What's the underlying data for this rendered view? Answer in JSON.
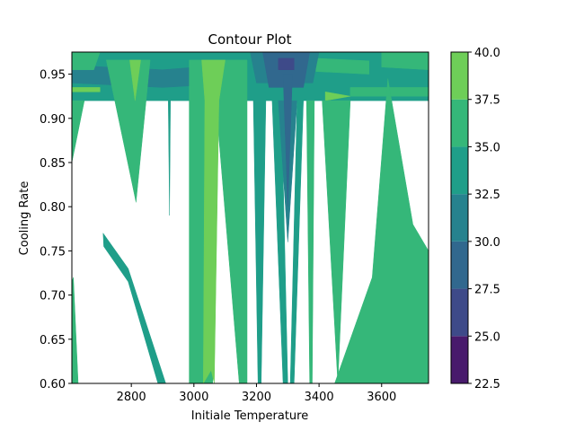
{
  "chart_data": {
    "type": "contour",
    "title": "Contour Plot",
    "xlabel": "Initiale Temperature",
    "ylabel": "Cooling Rate",
    "xlim": [
      2610,
      3750
    ],
    "ylim": [
      0.6,
      0.975
    ],
    "x_ticks": [
      "2800",
      "3000",
      "3200",
      "3400",
      "3600"
    ],
    "x_tick_values": [
      2800,
      3000,
      3200,
      3400,
      3600
    ],
    "y_ticks": [
      "0.60",
      "0.65",
      "0.70",
      "0.75",
      "0.80",
      "0.85",
      "0.90",
      "0.95"
    ],
    "y_tick_values": [
      0.6,
      0.65,
      0.7,
      0.75,
      0.8,
      0.85,
      0.9,
      0.95
    ],
    "colorbar": {
      "levels": [
        22.5,
        25.0,
        27.5,
        30.0,
        32.5,
        35.0,
        37.5,
        40.0
      ],
      "tick_labels": [
        "22.5",
        "25.0",
        "27.5",
        "30.0",
        "32.5",
        "35.0",
        "37.5",
        "40.0"
      ],
      "colors": [
        "#481a6c",
        "#3e4a89",
        "#31688e",
        "#26828e",
        "#1f9e89",
        "#35b779",
        "#6ece58",
        "#d3e21a"
      ]
    },
    "regions": [
      {
        "level": 32.5,
        "points": [
          [
            2610,
            0.975
          ],
          [
            3750,
            0.975
          ],
          [
            3750,
            0.92
          ],
          [
            2610,
            0.92
          ]
        ]
      },
      {
        "level": 30.0,
        "points": [
          [
            2610,
            0.96
          ],
          [
            2900,
            0.955
          ],
          [
            3150,
            0.962
          ],
          [
            3150,
            0.94
          ],
          [
            2900,
            0.935
          ],
          [
            2610,
            0.94
          ]
        ]
      },
      {
        "level": 35.0,
        "points": [
          [
            2610,
            0.975
          ],
          [
            2700,
            0.975
          ],
          [
            2680,
            0.955
          ],
          [
            2610,
            0.955
          ]
        ]
      },
      {
        "level": 35.0,
        "points": [
          [
            3390,
            0.968
          ],
          [
            3560,
            0.965
          ],
          [
            3560,
            0.95
          ],
          [
            3390,
            0.953
          ]
        ]
      },
      {
        "level": 35.0,
        "points": [
          [
            3600,
            0.975
          ],
          [
            3750,
            0.975
          ],
          [
            3750,
            0.955
          ],
          [
            3600,
            0.958
          ]
        ]
      },
      {
        "level": 35.0,
        "points": [
          [
            3500,
            0.935
          ],
          [
            3750,
            0.935
          ],
          [
            3750,
            0.925
          ],
          [
            3500,
            0.925
          ]
        ]
      },
      {
        "level": 30.0,
        "points": [
          [
            3180,
            0.975
          ],
          [
            3400,
            0.975
          ],
          [
            3380,
            0.94
          ],
          [
            3200,
            0.94
          ]
        ]
      },
      {
        "level": 27.5,
        "points": [
          [
            3220,
            0.975
          ],
          [
            3370,
            0.975
          ],
          [
            3350,
            0.935
          ],
          [
            3240,
            0.935
          ]
        ]
      },
      {
        "level": 25.0,
        "points": [
          [
            3270,
            0.968
          ],
          [
            3320,
            0.968
          ],
          [
            3320,
            0.955
          ],
          [
            3270,
            0.955
          ]
        ]
      },
      {
        "level": 37.5,
        "points": [
          [
            2610,
            0.935
          ],
          [
            2700,
            0.935
          ],
          [
            2700,
            0.93
          ],
          [
            2610,
            0.93
          ]
        ]
      },
      {
        "level": 37.5,
        "points": [
          [
            3420,
            0.93
          ],
          [
            3500,
            0.925
          ],
          [
            3420,
            0.92
          ]
        ]
      },
      {
        "level": 35.0,
        "points": [
          [
            2610,
            0.92
          ],
          [
            2650,
            0.92
          ],
          [
            2610,
            0.85
          ]
        ]
      },
      {
        "level": 35.0,
        "points": [
          [
            2720,
            0.966
          ],
          [
            2860,
            0.966
          ],
          [
            2815,
            0.805
          ]
        ]
      },
      {
        "level": 37.5,
        "points": [
          [
            2795,
            0.966
          ],
          [
            2830,
            0.966
          ],
          [
            2812,
            0.92
          ]
        ]
      },
      {
        "level": 32.5,
        "points": [
          [
            2710,
            0.77
          ],
          [
            2790,
            0.73
          ],
          [
            2910,
            0.6
          ],
          [
            2885,
            0.6
          ],
          [
            2790,
            0.715
          ],
          [
            2712,
            0.755
          ]
        ]
      },
      {
        "level": 35.0,
        "points": [
          [
            2600,
            0.705
          ],
          [
            2615,
            0.72
          ],
          [
            2630,
            0.6
          ],
          [
            2610,
            0.6
          ]
        ]
      },
      {
        "level": 32.5,
        "points": [
          [
            2918,
            0.92
          ],
          [
            2925,
            0.92
          ],
          [
            2922,
            0.79
          ]
        ]
      },
      {
        "level": 35.0,
        "points": [
          [
            2985,
            0.966
          ],
          [
            3170,
            0.966
          ],
          [
            3170,
            0.6
          ],
          [
            3145,
            0.6
          ],
          [
            3070,
            0.92
          ],
          [
            3060,
            0.6
          ],
          [
            2985,
            0.6
          ]
        ]
      },
      {
        "level": 37.5,
        "points": [
          [
            3025,
            0.966
          ],
          [
            3100,
            0.966
          ],
          [
            3080,
            0.92
          ],
          [
            3065,
            0.6
          ],
          [
            3055,
            0.615
          ],
          [
            3030,
            0.6
          ],
          [
            3035,
            0.92
          ]
        ]
      },
      {
        "level": 32.5,
        "points": [
          [
            3190,
            0.92
          ],
          [
            3230,
            0.92
          ],
          [
            3215,
            0.6
          ],
          [
            3205,
            0.6
          ]
        ]
      },
      {
        "level": 32.5,
        "points": [
          [
            3250,
            0.92
          ],
          [
            3280,
            0.92
          ],
          [
            3300,
            0.6
          ],
          [
            3285,
            0.6
          ]
        ]
      },
      {
        "level": 30.0,
        "points": [
          [
            3270,
            0.92
          ],
          [
            3330,
            0.92
          ],
          [
            3300,
            0.76
          ]
        ]
      },
      {
        "level": 27.5,
        "points": [
          [
            3285,
            0.95
          ],
          [
            3315,
            0.95
          ],
          [
            3300,
            0.8
          ]
        ]
      },
      {
        "level": 32.5,
        "points": [
          [
            3330,
            0.92
          ],
          [
            3350,
            0.92
          ],
          [
            3320,
            0.6
          ],
          [
            3308,
            0.6
          ]
        ]
      },
      {
        "level": 35.0,
        "points": [
          [
            3360,
            0.92
          ],
          [
            3385,
            0.92
          ],
          [
            3378,
            0.6
          ],
          [
            3370,
            0.6
          ]
        ]
      },
      {
        "level": 35.0,
        "points": [
          [
            3410,
            0.92
          ],
          [
            3500,
            0.92
          ],
          [
            3460,
            0.6
          ]
        ]
      },
      {
        "level": 35.0,
        "points": [
          [
            3450,
            0.6
          ],
          [
            3570,
            0.72
          ],
          [
            3620,
            0.945
          ],
          [
            3700,
            0.78
          ],
          [
            3750,
            0.75
          ],
          [
            3750,
            0.6
          ]
        ]
      }
    ]
  }
}
